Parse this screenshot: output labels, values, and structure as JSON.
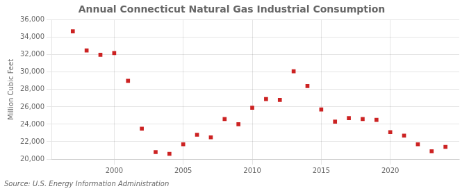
{
  "chart_data": {
    "type": "scatter",
    "title": "Annual Connecticut Natural Gas Industrial Consumption",
    "ylabel": "Million Cubic Feet",
    "annotation": "Source: U.S. Energy Information Administration",
    "x": [
      1997,
      1998,
      1999,
      2000,
      2001,
      2002,
      2003,
      2004,
      2005,
      2006,
      2007,
      2008,
      2009,
      2010,
      2011,
      2012,
      2013,
      2014,
      2015,
      2016,
      2017,
      2018,
      2019,
      2020,
      2021,
      2022,
      2023,
      2024
    ],
    "values": [
      34700,
      32500,
      32000,
      32200,
      29000,
      23500,
      20800,
      20600,
      21700,
      22800,
      22500,
      24600,
      24000,
      25900,
      26900,
      26800,
      30100,
      28400,
      25700,
      24300,
      24700,
      24600,
      24500,
      23100,
      22700,
      21700,
      20900,
      21400
    ],
    "color": "#cc2222",
    "marker": "square",
    "xlim": [
      1995.5,
      2025
    ],
    "xticks": [
      2000,
      2005,
      2010,
      2015,
      2020
    ],
    "ylim": [
      20000,
      36000
    ],
    "yticks": [
      {
        "value": 20000,
        "label": "20,000"
      },
      {
        "value": 22000,
        "label": "22,000"
      },
      {
        "value": 24000,
        "label": "24,000"
      },
      {
        "value": 26000,
        "label": "26,000"
      },
      {
        "value": 28000,
        "label": "28,000"
      },
      {
        "value": 30000,
        "label": "30,000"
      },
      {
        "value": 32000,
        "label": "32,000"
      },
      {
        "value": 34000,
        "label": "34,000"
      },
      {
        "value": 36000,
        "label": "36,000"
      }
    ],
    "grid": true
  }
}
